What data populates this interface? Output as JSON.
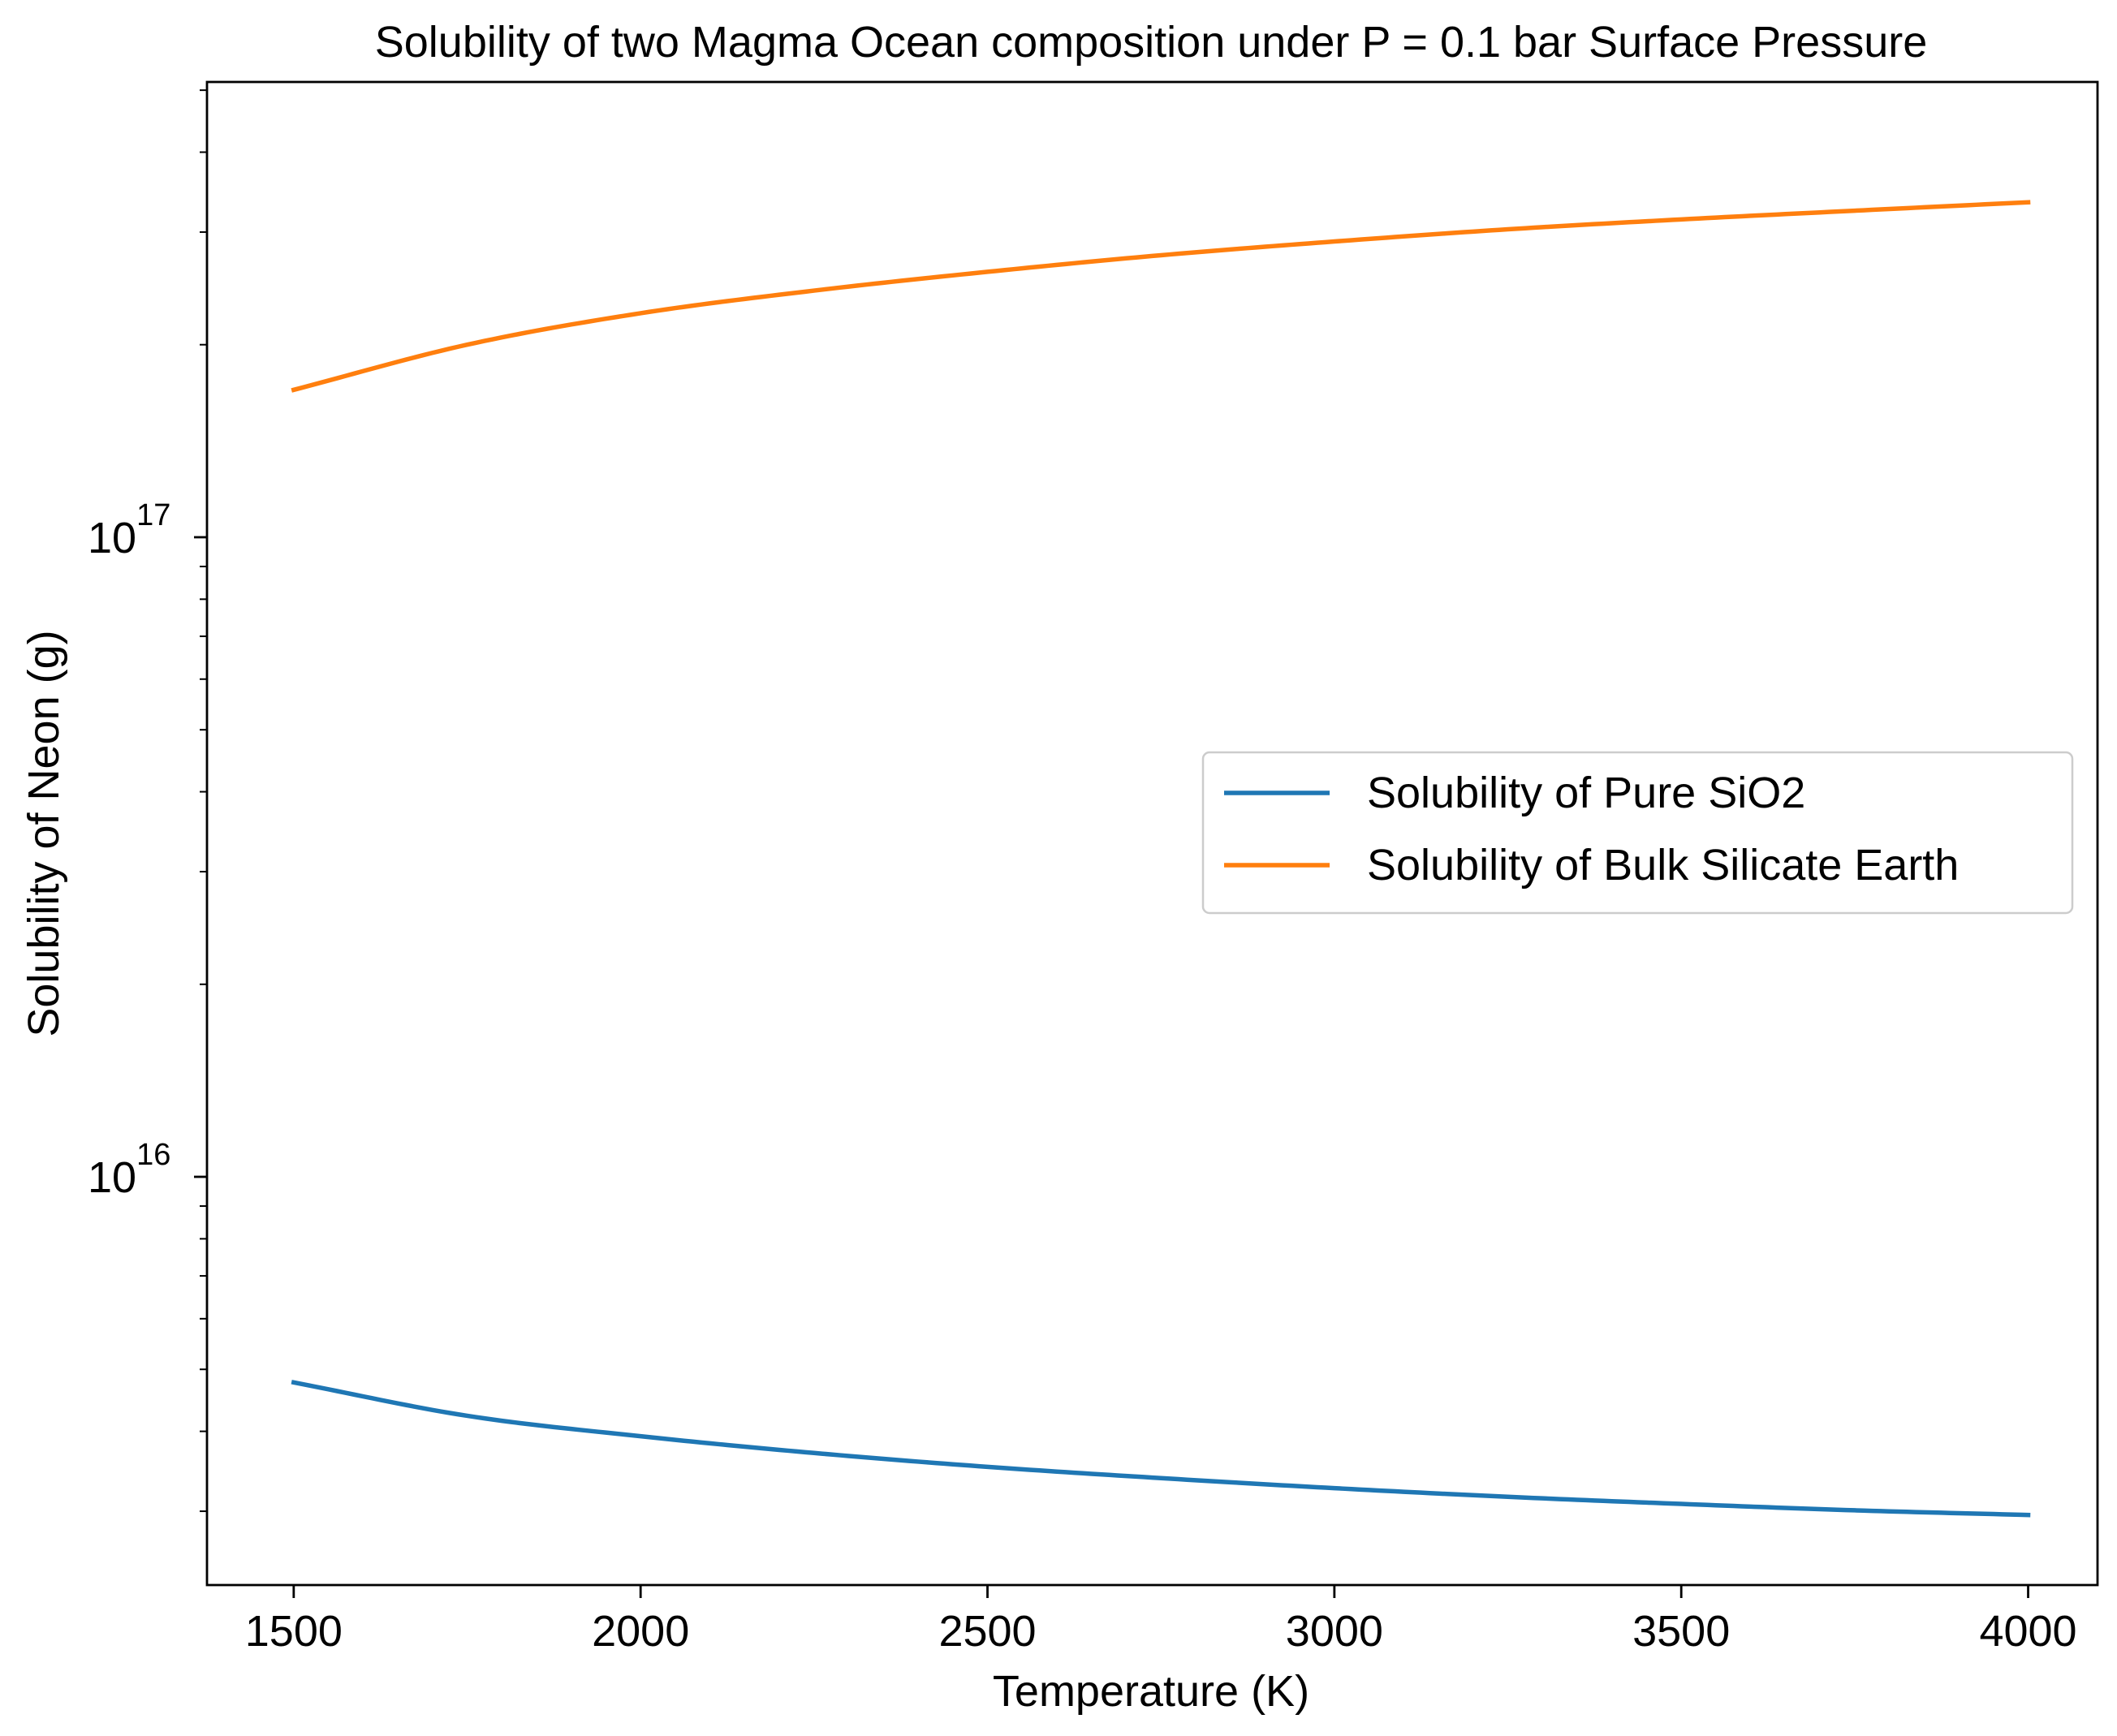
{
  "chart_data": {
    "type": "line",
    "title": "Solubility of two Magma Ocean composition under P = 0.1 bar Surface Pressure",
    "xlabel": "Temperature (K)",
    "ylabel": "Solubility of Neon (g)",
    "xlim": [
      1375,
      4100
    ],
    "ylim": [
      2300000000000000.0,
      5.15e+17
    ],
    "yscale": "log",
    "grid": false,
    "legend_position": "center-right",
    "x_ticks": [
      {
        "value": 1500,
        "label": "1500"
      },
      {
        "value": 2000,
        "label": "2000"
      },
      {
        "value": 2500,
        "label": "2500"
      },
      {
        "value": 3000,
        "label": "3000"
      },
      {
        "value": 3500,
        "label": "3500"
      },
      {
        "value": 4000,
        "label": "4000"
      }
    ],
    "y_major_ticks": [
      {
        "value": 1e+16,
        "base": "10",
        "exponent": "16"
      },
      {
        "value": 1e+17,
        "base": "10",
        "exponent": "17"
      }
    ],
    "y_minor_ticks": [
      3000000000000000.0,
      4000000000000000.0,
      5000000000000000.0,
      6000000000000000.0,
      7000000000000000.0,
      8000000000000000.0,
      9000000000000000.0,
      2e+16,
      3e+16,
      4e+16,
      5e+16,
      6e+16,
      7e+16,
      8e+16,
      9e+16,
      2e+17,
      3e+17,
      4e+17,
      5e+17
    ],
    "x": [
      1500,
      1750,
      2000,
      2250,
      2500,
      2750,
      3000,
      3250,
      3500,
      3750,
      4000
    ],
    "series": [
      {
        "name": "Solubility of Pure SiO2",
        "color": "#1f77b4",
        "values": [
          4770000000000000.0,
          4230000000000000.0,
          3930000000000000.0,
          3700000000000000.0,
          3520000000000000.0,
          3380000000000000.0,
          3260000000000000.0,
          3160000000000000.0,
          3080000000000000.0,
          3010000000000000.0,
          2960000000000000.0
        ]
      },
      {
        "name": "Solubility of Bulk Silicate Earth",
        "color": "#ff7f0e",
        "values": [
          1.7e+17,
          2e+17,
          2.24e+17,
          2.43e+17,
          2.6e+17,
          2.76e+17,
          2.9e+17,
          3.03e+17,
          3.14e+17,
          3.24e+17,
          3.34e+17
        ]
      }
    ]
  }
}
